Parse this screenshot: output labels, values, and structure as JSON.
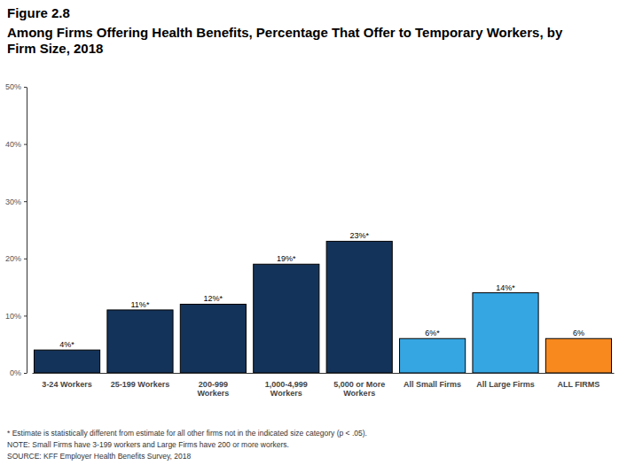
{
  "chart_data": {
    "type": "bar",
    "figure": "Figure 2.8",
    "title": "Among Firms Offering Health Benefits, Percentage That Offer to Temporary Workers, by Firm Size, 2018",
    "categories": [
      "3-24 Workers",
      "25-199 Workers",
      "200-999 Workers",
      "1,000-4,999 Workers",
      "5,000 or More Workers",
      "All Small Firms",
      "All Large Firms",
      "ALL FIRMS"
    ],
    "values": [
      4,
      11,
      12,
      19,
      23,
      6,
      14,
      6
    ],
    "value_labels": [
      "4%*",
      "11%*",
      "12%*",
      "19%*",
      "23%*",
      "6%*",
      "14%*",
      "6%"
    ],
    "colors": [
      "#14335a",
      "#14335a",
      "#14335a",
      "#14335a",
      "#14335a",
      "#35a6e2",
      "#35a6e2",
      "#f7891f"
    ],
    "data_labels": true,
    "grid": false,
    "ylim": [
      0,
      50
    ],
    "yticks": [
      {
        "value": 0,
        "label": "0%"
      },
      {
        "value": 10,
        "label": "10%"
      },
      {
        "value": 20,
        "label": "20%"
      },
      {
        "value": 30,
        "label": "30%"
      },
      {
        "value": 40,
        "label": "40%"
      },
      {
        "value": 50,
        "label": "50%"
      }
    ],
    "annotations": [
      "* Estimate is statistically different from estimate for all other firms not in the indicated size category (p < .05).",
      "NOTE: Small Firms have 3-199 workers and Large Firms have 200 or more workers.",
      "SOURCE: KFF Employer Health Benefits Survey, 2018"
    ]
  }
}
